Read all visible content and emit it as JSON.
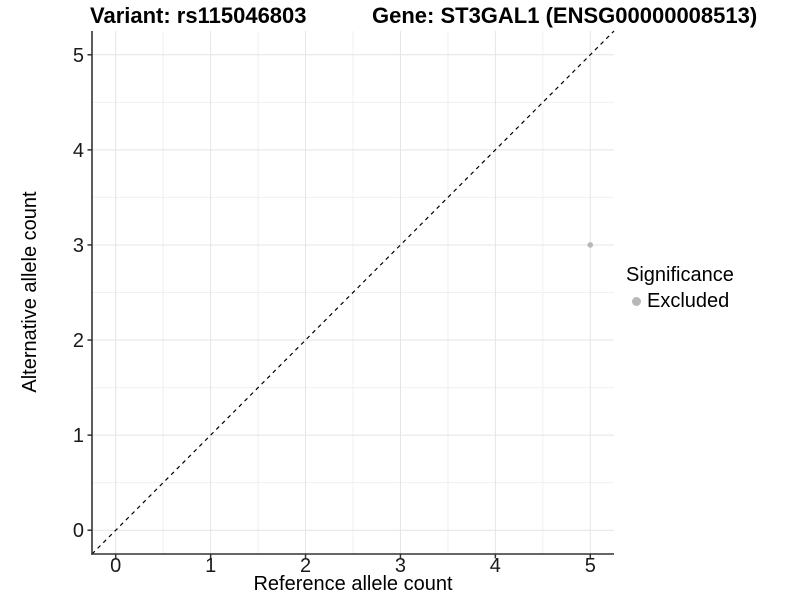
{
  "chart_data": {
    "type": "scatter",
    "title_left": "Variant: rs115046803",
    "title_right": "Gene: ST3GAL1 (ENSG00000008513)",
    "xlabel": "Reference allele count",
    "ylabel": "Alternative allele count",
    "xlim": [
      -0.25,
      5.25
    ],
    "ylim": [
      -0.25,
      5.25
    ],
    "xticks": [
      0,
      1,
      2,
      3,
      4,
      5
    ],
    "yticks": [
      0,
      1,
      2,
      3,
      4,
      5
    ],
    "x_minor": [
      0.5,
      1.5,
      2.5,
      3.5,
      4.5
    ],
    "y_minor": [
      0.5,
      1.5,
      2.5,
      3.5,
      4.5
    ],
    "grid": true,
    "reference_line": {
      "slope": 1,
      "intercept": 0,
      "style": "dashed",
      "color": "#000000"
    },
    "series": [
      {
        "name": "Excluded",
        "color": "#b8b8b8",
        "points": [
          {
            "x": 5,
            "y": 3
          }
        ]
      }
    ],
    "legend": {
      "title": "Significance",
      "position": "right",
      "items": [
        {
          "label": "Excluded",
          "color": "#b8b8b8"
        }
      ]
    },
    "colors": {
      "grid_major": "#e4e4e4",
      "grid_minor": "#f0f0f0",
      "axis_line": "#333333",
      "tick_text": "#1a1a1a",
      "background": "#ffffff"
    }
  }
}
